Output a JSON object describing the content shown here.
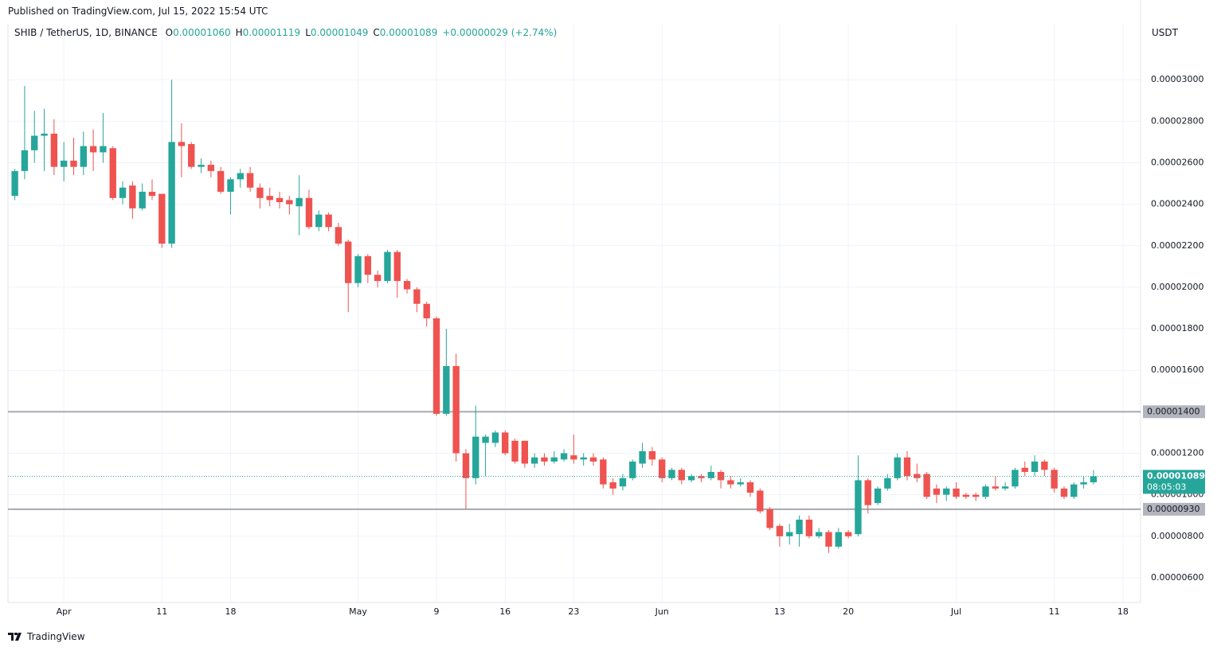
{
  "header": "Published on TradingView.com, Jul 15, 2022 15:54 UTC",
  "footer": "TradingView",
  "chart_data": {
    "type": "candlestick",
    "title": "SHIB / TetherUS, 1D, BINANCE",
    "legend": [
      {
        "key": "O",
        "text": "0.00001060"
      },
      {
        "key": "H",
        "text": "0.00001119"
      },
      {
        "key": "L",
        "text": "0.00001049"
      },
      {
        "key": "C",
        "text": "0.00001089"
      }
    ],
    "change": "+0.00000029 (+2.74%)",
    "axis_unit": "USDT",
    "up_color": "#26a69a",
    "down_color": "#ef5350",
    "open": [
      2.44e-05,
      2.56e-05,
      2.66e-05,
      2.73e-05,
      2.74e-05,
      2.58e-05,
      2.61e-05,
      2.58e-05,
      2.68e-05,
      2.65e-05,
      2.67e-05,
      2.43e-05,
      2.49e-05,
      2.38e-05,
      2.46e-05,
      2.45e-05,
      2.21e-05,
      2.7e-05,
      2.69e-05,
      2.58e-05,
      2.59e-05,
      2.56e-05,
      2.46e-05,
      2.52e-05,
      2.55e-05,
      2.48e-05,
      2.44e-05,
      2.43e-05,
      2.42e-05,
      2.39e-05,
      2.43e-05,
      2.29e-05,
      2.35e-05,
      2.29e-05,
      2.22e-05,
      2.02e-05,
      2.15e-05,
      2.06e-05,
      2.03e-05,
      2.17e-05,
      2.03e-05,
      1.99e-05,
      1.92e-05,
      1.85e-05,
      1.39e-05,
      1.62e-05,
      1.2e-05,
      1.08e-05,
      1.25e-05,
      1.25e-05,
      1.3e-05,
      1.26e-05,
      1.26e-05,
      1.15e-05,
      1.18e-05,
      1.16e-05,
      1.17e-05,
      1.19e-05,
      1.17e-05,
      1.18e-05,
      1.17e-05,
      1.06e-05,
      1.04e-05,
      1.08e-05,
      1.15e-05,
      1.21e-05,
      1.17e-05,
      1.08e-05,
      1.12e-05,
      1.07e-05,
      1.09e-05,
      1.08e-05,
      1.11e-05,
      1.07e-05,
      1.05e-05,
      1.06e-05,
      1.02e-05,
      9.3e-06,
      8.5e-06,
      8e-06,
      8.1e-06,
      8.8e-06,
      8e-06,
      8.2e-06,
      7.5e-06,
      8.2e-06,
      8.1e-06,
      1.07e-05,
      9.6e-06,
      1.03e-05,
      1.08e-05,
      1.18e-05,
      1.1e-05,
      1.1e-05,
      1.03e-05,
      1e-05,
      1.03e-05,
      1e-05,
      1e-05,
      9.9e-06,
      1.04e-05,
      1.03e-05,
      1.04e-05,
      1.13e-05,
      1.11e-05,
      1.16e-05,
      1.12e-05,
      1.03e-05,
      9.9e-06,
      1.05e-05,
      1.06e-05
    ],
    "high": [
      2.57e-05,
      2.97e-05,
      2.85e-05,
      2.86e-05,
      2.81e-05,
      2.7e-05,
      2.72e-05,
      2.75e-05,
      2.76e-05,
      2.84e-05,
      2.68e-05,
      2.51e-05,
      2.51e-05,
      2.5e-05,
      2.52e-05,
      2.45e-05,
      3e-05,
      2.79e-05,
      2.7e-05,
      2.62e-05,
      2.61e-05,
      2.58e-05,
      2.53e-05,
      2.57e-05,
      2.58e-05,
      2.5e-05,
      2.48e-05,
      2.46e-05,
      2.44e-05,
      2.54e-05,
      2.47e-05,
      2.37e-05,
      2.36e-05,
      2.31e-05,
      2.23e-05,
      2.16e-05,
      2.16e-05,
      2.08e-05,
      2.18e-05,
      2.18e-05,
      2.04e-05,
      2e-05,
      1.93e-05,
      1.86e-05,
      1.8e-05,
      1.68e-05,
      1.22e-05,
      1.43e-05,
      1.29e-05,
      1.31e-05,
      1.31e-05,
      1.27e-05,
      1.26e-05,
      1.2e-05,
      1.2e-05,
      1.21e-05,
      1.22e-05,
      1.29e-05,
      1.2e-05,
      1.2e-05,
      1.18e-05,
      1.08e-05,
      1.1e-05,
      1.17e-05,
      1.25e-05,
      1.23e-05,
      1.18e-05,
      1.13e-05,
      1.13e-05,
      1.1e-05,
      1.1e-05,
      1.14e-05,
      1.12e-05,
      1.09e-05,
      1.08e-05,
      1.07e-05,
      1.03e-05,
      9.4e-06,
      8.6e-06,
      8.6e-06,
      9e-06,
      9e-06,
      8.4e-06,
      8.3e-06,
      8.4e-06,
      8.3e-06,
      1.19e-05,
      1.08e-05,
      1.04e-05,
      1.1e-05,
      1.2e-05,
      1.21e-05,
      1.15e-05,
      1.11e-05,
      1.05e-05,
      1.04e-05,
      1.06e-05,
      1.01e-05,
      1.01e-05,
      1.05e-05,
      1.09e-05,
      1.06e-05,
      1.13e-05,
      1.16e-05,
      1.19e-05,
      1.17e-05,
      1.13e-05,
      1.04e-05,
      1.06e-05,
      1.09e-05,
      1.119e-05
    ],
    "low": [
      2.42e-05,
      2.52e-05,
      2.6e-05,
      2.56e-05,
      2.54e-05,
      2.51e-05,
      2.54e-05,
      2.54e-05,
      2.56e-05,
      2.6e-05,
      2.42e-05,
      2.4e-05,
      2.33e-05,
      2.37e-05,
      2.42e-05,
      2.19e-05,
      2.19e-05,
      2.53e-05,
      2.57e-05,
      2.55e-05,
      2.53e-05,
      2.45e-05,
      2.35e-05,
      2.48e-05,
      2.46e-05,
      2.38e-05,
      2.39e-05,
      2.38e-05,
      2.35e-05,
      2.25e-05,
      2.28e-05,
      2.27e-05,
      2.27e-05,
      2.2e-05,
      1.88e-05,
      2e-05,
      2.02e-05,
      2e-05,
      2.02e-05,
      1.95e-05,
      1.97e-05,
      1.88e-05,
      1.81e-05,
      1.38e-05,
      1.38e-05,
      1.16e-05,
      9.3e-06,
      1.05e-05,
      1.09e-05,
      1.23e-05,
      1.19e-05,
      1.15e-05,
      1.13e-05,
      1.13e-05,
      1.14e-05,
      1.15e-05,
      1.16e-05,
      1.15e-05,
      1.14e-05,
      1.14e-05,
      1.03e-05,
      1e-05,
      1.02e-05,
      1.07e-05,
      1.13e-05,
      1.14e-05,
      1.06e-05,
      1.07e-05,
      1.05e-05,
      1.06e-05,
      1.06e-05,
      1.07e-05,
      1.03e-05,
      1.03e-05,
      1.04e-05,
      9.9e-06,
      9.1e-06,
      8.3e-06,
      7.5e-06,
      7.6e-06,
      7.5e-06,
      7.9e-06,
      7.9e-06,
      7.2e-06,
      7.4e-06,
      7.9e-06,
      8e-06,
      9.1e-06,
      9.5e-06,
      1.02e-05,
      1.07e-05,
      1.07e-05,
      1.06e-05,
      9.8e-06,
      9.6e-06,
      9.7e-06,
      9.8e-06,
      9.8e-06,
      9.7e-06,
      9.8e-06,
      1.02e-05,
      1.02e-05,
      1.03e-05,
      1.09e-05,
      1.09e-05,
      1.09e-05,
      1.01e-05,
      9.8e-06,
      9.8e-06,
      1.03e-05,
      1.049e-05
    ],
    "close": [
      2.56e-05,
      2.66e-05,
      2.73e-05,
      2.74e-05,
      2.58e-05,
      2.61e-05,
      2.58e-05,
      2.68e-05,
      2.65e-05,
      2.68e-05,
      2.43e-05,
      2.48e-05,
      2.38e-05,
      2.46e-05,
      2.44e-05,
      2.21e-05,
      2.7e-05,
      2.68e-05,
      2.58e-05,
      2.59e-05,
      2.56e-05,
      2.46e-05,
      2.52e-05,
      2.55e-05,
      2.48e-05,
      2.43e-05,
      2.42e-05,
      2.41e-05,
      2.4e-05,
      2.43e-05,
      2.29e-05,
      2.35e-05,
      2.29e-05,
      2.21e-05,
      2.02e-05,
      2.15e-05,
      2.06e-05,
      2.03e-05,
      2.17e-05,
      2.03e-05,
      1.99e-05,
      1.92e-05,
      1.85e-05,
      1.39e-05,
      1.62e-05,
      1.2e-05,
      1.08e-05,
      1.28e-05,
      1.28e-05,
      1.3e-05,
      1.2e-05,
      1.16e-05,
      1.15e-05,
      1.18e-05,
      1.16e-05,
      1.18e-05,
      1.2e-05,
      1.17e-05,
      1.18e-05,
      1.16e-05,
      1.05e-05,
      1.03e-05,
      1.08e-05,
      1.16e-05,
      1.21e-05,
      1.17e-05,
      1.08e-05,
      1.12e-05,
      1.07e-05,
      1.09e-05,
      1.08e-05,
      1.11e-05,
      1.07e-05,
      1.05e-05,
      1.06e-05,
      1.01e-05,
      9.2e-06,
      8.4e-06,
      8e-06,
      8.2e-06,
      8.8e-06,
      8e-06,
      8.2e-06,
      7.5e-06,
      8.2e-06,
      8e-06,
      1.07e-05,
      9.5e-06,
      1.03e-05,
      1.08e-05,
      1.18e-05,
      1.09e-05,
      1.08e-05,
      9.9e-06,
      1e-05,
      1.03e-05,
      9.9e-06,
      9.9e-06,
      9.9e-06,
      1.04e-05,
      1.03e-05,
      1.04e-05,
      1.12e-05,
      1.11e-05,
      1.16e-05,
      1.12e-05,
      1.03e-05,
      9.9e-06,
      1.05e-05,
      1.06e-05,
      1.089e-05
    ],
    "xlim": [
      -0.7,
      114.8
    ],
    "xticks": [
      {
        "value": 5,
        "label": "Apr"
      },
      {
        "value": 15,
        "label": "11"
      },
      {
        "value": 22,
        "label": "18"
      },
      {
        "value": 35,
        "label": "May"
      },
      {
        "value": 43,
        "label": "9"
      },
      {
        "value": 50,
        "label": "16"
      },
      {
        "value": 57,
        "label": "23"
      },
      {
        "value": 66,
        "label": "Jun"
      },
      {
        "value": 78,
        "label": "13"
      },
      {
        "value": 85,
        "label": "20"
      },
      {
        "value": 96,
        "label": "Jul"
      },
      {
        "value": 106,
        "label": "11"
      },
      {
        "value": 113,
        "label": "18"
      }
    ],
    "ylim": [
      4.81e-06,
      3.269e-05
    ],
    "yticks": [
      {
        "value": 6e-06,
        "label": "0.00000600"
      },
      {
        "value": 8e-06,
        "label": "0.00000800"
      },
      {
        "value": 1e-05,
        "label": "0.00001000"
      },
      {
        "value": 1.2e-05,
        "label": "0.00001200"
      },
      {
        "value": 1.4e-05,
        "label": "0.00001400"
      },
      {
        "value": 1.6e-05,
        "label": "0.00001600"
      },
      {
        "value": 1.8e-05,
        "label": "0.00001800"
      },
      {
        "value": 2e-05,
        "label": "0.00002000"
      },
      {
        "value": 2.2e-05,
        "label": "0.00002200"
      },
      {
        "value": 2.4e-05,
        "label": "0.00002400"
      },
      {
        "value": 2.6e-05,
        "label": "0.00002600"
      },
      {
        "value": 2.8e-05,
        "label": "0.00002800"
      },
      {
        "value": 3e-05,
        "label": "0.00003000"
      }
    ],
    "grid": true,
    "levels": [
      {
        "value": 1.4e-05,
        "label": "0.00001400"
      },
      {
        "value": 9.3e-06,
        "label": "0.00000930"
      }
    ],
    "last_price": {
      "value": 1.089e-05,
      "label": "0.00001089",
      "countdown": "08:05:03"
    }
  }
}
